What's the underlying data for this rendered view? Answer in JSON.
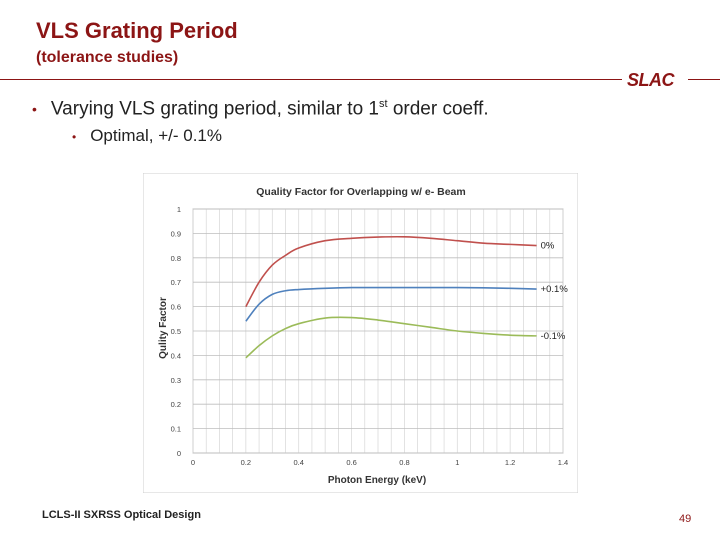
{
  "slide": {
    "title": "VLS Grating Period",
    "subtitle": "(tolerance studies)",
    "logo": "SLAC",
    "bullet1_main": "Varying VLS grating period, similar to 1",
    "bullet1_sup": "st",
    "bullet1_end": " order coeff.",
    "bullet2": "Optimal, +/- 0.1%",
    "footer": "LCLS-II SXRSS Optical Design",
    "page_number": "49"
  },
  "chart_data": {
    "type": "line",
    "title": "Quality Factor for Overlapping w/ e- Beam",
    "xlabel": "Photon Energy (keV)",
    "ylabel": "Qulity Factor",
    "xlim": [
      0,
      1.4
    ],
    "ylim": [
      0,
      1
    ],
    "xticks": [
      "0",
      "0.2",
      "0.4",
      "0.6",
      "0.8",
      "1",
      "1.2",
      "1.4"
    ],
    "yticks": [
      "0",
      "0.1",
      "0.2",
      "0.3",
      "0.4",
      "0.5",
      "0.6",
      "0.7",
      "0.8",
      "0.9",
      "1"
    ],
    "grid": true,
    "series": [
      {
        "name": "0%",
        "color": "#c0504d",
        "x": [
          0.2,
          0.25,
          0.3,
          0.35,
          0.4,
          0.5,
          0.6,
          0.7,
          0.8,
          0.9,
          1.0,
          1.1,
          1.2,
          1.3
        ],
        "y": [
          0.6,
          0.7,
          0.77,
          0.81,
          0.84,
          0.87,
          0.88,
          0.885,
          0.886,
          0.88,
          0.87,
          0.86,
          0.855,
          0.85
        ]
      },
      {
        "name": "+0.1%",
        "color": "#4f81bd",
        "x": [
          0.2,
          0.25,
          0.3,
          0.35,
          0.4,
          0.5,
          0.6,
          0.7,
          0.8,
          0.9,
          1.0,
          1.1,
          1.2,
          1.3
        ],
        "y": [
          0.54,
          0.61,
          0.65,
          0.665,
          0.67,
          0.675,
          0.678,
          0.678,
          0.678,
          0.678,
          0.678,
          0.677,
          0.675,
          0.672
        ]
      },
      {
        "name": "-0.1%",
        "color": "#9bbb59",
        "x": [
          0.2,
          0.25,
          0.3,
          0.35,
          0.4,
          0.5,
          0.6,
          0.7,
          0.8,
          0.9,
          1.0,
          1.1,
          1.2,
          1.3
        ],
        "y": [
          0.39,
          0.44,
          0.48,
          0.51,
          0.53,
          0.553,
          0.555,
          0.545,
          0.53,
          0.515,
          0.5,
          0.49,
          0.483,
          0.48
        ]
      }
    ]
  }
}
